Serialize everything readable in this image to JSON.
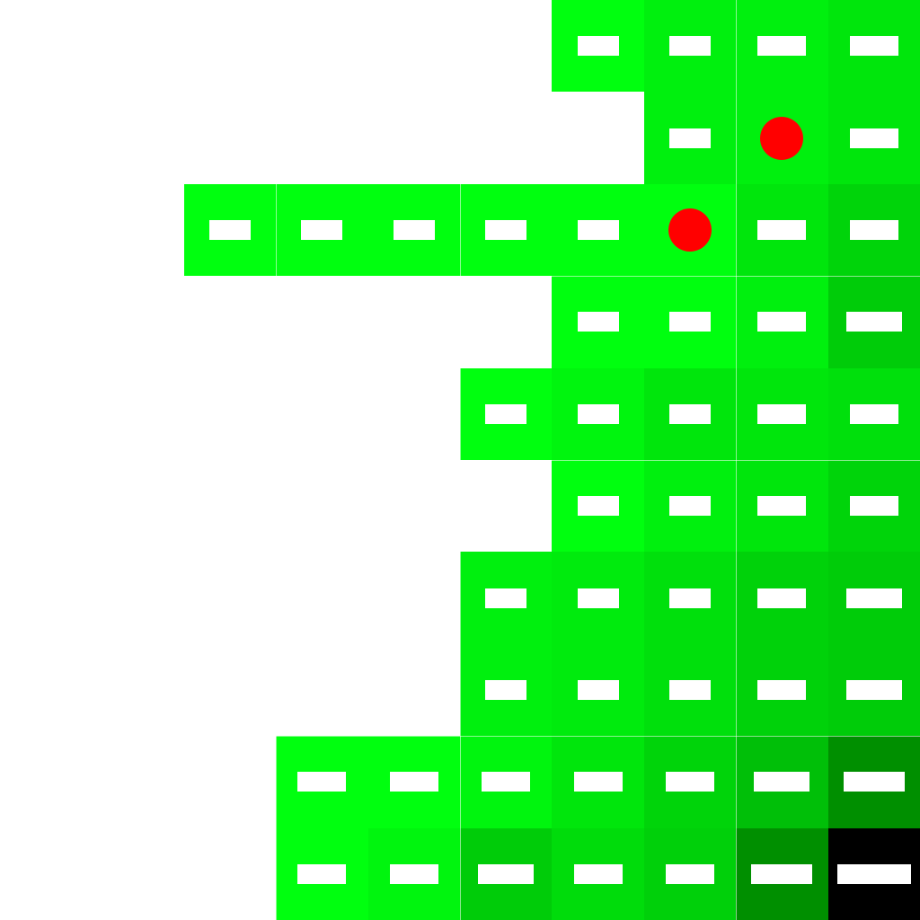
{
  "grid": {
    "columns": 10,
    "rows": 10,
    "marker_color": "#ff0000",
    "empty_color": "#ffffff",
    "slot_color": "#ffffff",
    "cells": [
      {
        "row": 0,
        "col": 6,
        "color": "#00ff0f",
        "marker": false
      },
      {
        "row": 0,
        "col": 7,
        "color": "#00f00e",
        "marker": false
      },
      {
        "row": 0,
        "col": 8,
        "color": "#00f00e",
        "marker": false
      },
      {
        "row": 0,
        "col": 9,
        "color": "#00e60c",
        "marker": false
      },
      {
        "row": 1,
        "col": 7,
        "color": "#00f00e",
        "marker": false
      },
      {
        "row": 1,
        "col": 8,
        "color": "#00f00e",
        "marker": true
      },
      {
        "row": 1,
        "col": 9,
        "color": "#00e60c",
        "marker": false
      },
      {
        "row": 2,
        "col": 2,
        "color": "#00ff0f",
        "marker": false
      },
      {
        "row": 2,
        "col": 3,
        "color": "#00ff0f",
        "marker": false
      },
      {
        "row": 2,
        "col": 4,
        "color": "#00ff0f",
        "marker": false
      },
      {
        "row": 2,
        "col": 5,
        "color": "#00ff0f",
        "marker": false
      },
      {
        "row": 2,
        "col": 6,
        "color": "#00ff0f",
        "marker": false
      },
      {
        "row": 2,
        "col": 7,
        "color": "#00ff0f",
        "marker": true
      },
      {
        "row": 2,
        "col": 8,
        "color": "#00e60c",
        "marker": false
      },
      {
        "row": 2,
        "col": 9,
        "color": "#00d40a",
        "marker": false
      },
      {
        "row": 3,
        "col": 6,
        "color": "#00ff0f",
        "marker": false
      },
      {
        "row": 3,
        "col": 7,
        "color": "#00ff0f",
        "marker": false
      },
      {
        "row": 3,
        "col": 8,
        "color": "#00f00e",
        "marker": false
      },
      {
        "row": 3,
        "col": 9,
        "color": "#00cc09",
        "marker": false
      },
      {
        "row": 4,
        "col": 5,
        "color": "#00ff0f",
        "marker": false
      },
      {
        "row": 4,
        "col": 6,
        "color": "#00f50e",
        "marker": false
      },
      {
        "row": 4,
        "col": 7,
        "color": "#00e60c",
        "marker": false
      },
      {
        "row": 4,
        "col": 8,
        "color": "#00e60c",
        "marker": false
      },
      {
        "row": 4,
        "col": 9,
        "color": "#00e00c",
        "marker": false
      },
      {
        "row": 5,
        "col": 6,
        "color": "#00ff0f",
        "marker": false
      },
      {
        "row": 5,
        "col": 7,
        "color": "#00f00e",
        "marker": false
      },
      {
        "row": 5,
        "col": 8,
        "color": "#00e60c",
        "marker": false
      },
      {
        "row": 5,
        "col": 9,
        "color": "#00d40a",
        "marker": false
      },
      {
        "row": 6,
        "col": 5,
        "color": "#00f00e",
        "marker": false
      },
      {
        "row": 6,
        "col": 6,
        "color": "#00eb0d",
        "marker": false
      },
      {
        "row": 6,
        "col": 7,
        "color": "#00e00c",
        "marker": false
      },
      {
        "row": 6,
        "col": 8,
        "color": "#00d20a",
        "marker": false
      },
      {
        "row": 6,
        "col": 9,
        "color": "#00cc09",
        "marker": false
      },
      {
        "row": 7,
        "col": 5,
        "color": "#00f00e",
        "marker": false
      },
      {
        "row": 7,
        "col": 6,
        "color": "#00eb0d",
        "marker": false
      },
      {
        "row": 7,
        "col": 7,
        "color": "#00e00c",
        "marker": false
      },
      {
        "row": 7,
        "col": 8,
        "color": "#00d20a",
        "marker": false
      },
      {
        "row": 7,
        "col": 9,
        "color": "#00cc09",
        "marker": false
      },
      {
        "row": 8,
        "col": 3,
        "color": "#00ff0f",
        "marker": false
      },
      {
        "row": 8,
        "col": 4,
        "color": "#00ff0f",
        "marker": false
      },
      {
        "row": 8,
        "col": 5,
        "color": "#00f50e",
        "marker": false
      },
      {
        "row": 8,
        "col": 6,
        "color": "#00e60c",
        "marker": false
      },
      {
        "row": 8,
        "col": 7,
        "color": "#00d40a",
        "marker": false
      },
      {
        "row": 8,
        "col": 8,
        "color": "#00bf08",
        "marker": false
      },
      {
        "row": 8,
        "col": 9,
        "color": "#008f00",
        "marker": false
      },
      {
        "row": 9,
        "col": 3,
        "color": "#00ff0f",
        "marker": false
      },
      {
        "row": 9,
        "col": 4,
        "color": "#00f50e",
        "marker": false
      },
      {
        "row": 9,
        "col": 5,
        "color": "#00cc09",
        "marker": false
      },
      {
        "row": 9,
        "col": 6,
        "color": "#00dc0b",
        "marker": false
      },
      {
        "row": 9,
        "col": 7,
        "color": "#00d00a",
        "marker": false
      },
      {
        "row": 9,
        "col": 8,
        "color": "#008f00",
        "marker": false
      },
      {
        "row": 9,
        "col": 9,
        "color": "#000000",
        "marker": false
      }
    ]
  }
}
